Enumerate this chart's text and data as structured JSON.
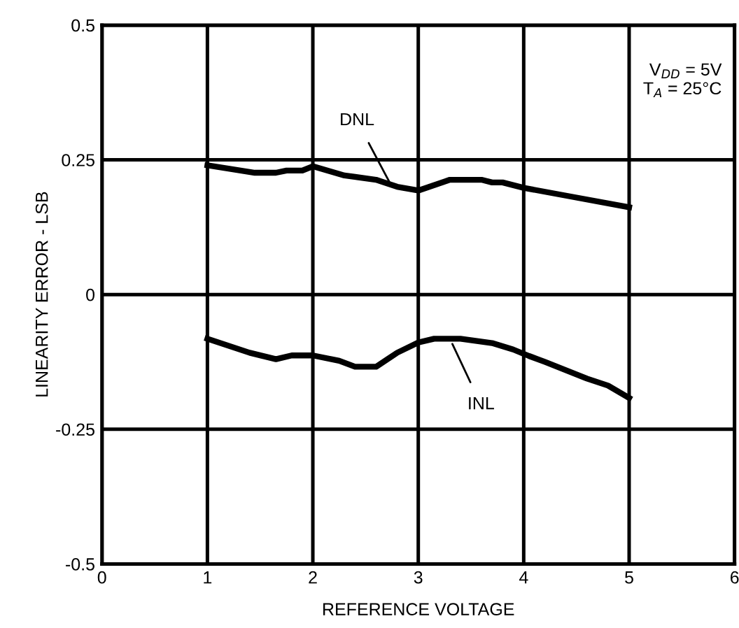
{
  "chart_data": {
    "type": "line",
    "xlabel": "REFERENCE VOLTAGE",
    "ylabel": "LINEARITY ERROR - LSB",
    "xlim": [
      0,
      6
    ],
    "xticks": [
      0,
      1,
      2,
      3,
      4,
      5,
      6
    ],
    "ylim": [
      -0.5,
      0.5
    ],
    "yticks": [
      -0.5,
      -0.25,
      0,
      0.25,
      0.5
    ],
    "grid": true,
    "marker": "none",
    "line_style": "solid",
    "series": [
      {
        "color": "#000000",
        "x": [
          1,
          1.45,
          1.65,
          1.75,
          1.9,
          2.0,
          2.3,
          2.6,
          2.8,
          3.0,
          3.3,
          3.6,
          3.7,
          3.8,
          4.0,
          4.5,
          5.0
        ],
        "values": [
          0.24,
          0.226,
          0.226,
          0.23,
          0.23,
          0.238,
          0.221,
          0.213,
          0.2,
          0.193,
          0.213,
          0.213,
          0.208,
          0.208,
          0.198,
          0.18,
          0.162
        ]
      },
      {
        "color": "#000000",
        "x": [
          1,
          1.4,
          1.65,
          1.8,
          2.0,
          2.25,
          2.4,
          2.6,
          2.8,
          3.0,
          3.15,
          3.4,
          3.7,
          3.9,
          4.05,
          4.2,
          4.6,
          4.8,
          5.0
        ],
        "values": [
          -0.082,
          -0.108,
          -0.12,
          -0.113,
          -0.113,
          -0.123,
          -0.134,
          -0.134,
          -0.108,
          -0.089,
          -0.082,
          -0.082,
          -0.09,
          -0.102,
          -0.114,
          -0.125,
          -0.156,
          -0.169,
          -0.192
        ]
      }
    ],
    "annotations": [
      {
        "text": "DNL",
        "x": 2.75,
        "y": 0.2
      },
      {
        "text": "INL",
        "x": 3.3,
        "y": -0.082
      },
      "V$_{DD}$ = 5V\nT$_{A}$ = 25°C"
    ]
  }
}
